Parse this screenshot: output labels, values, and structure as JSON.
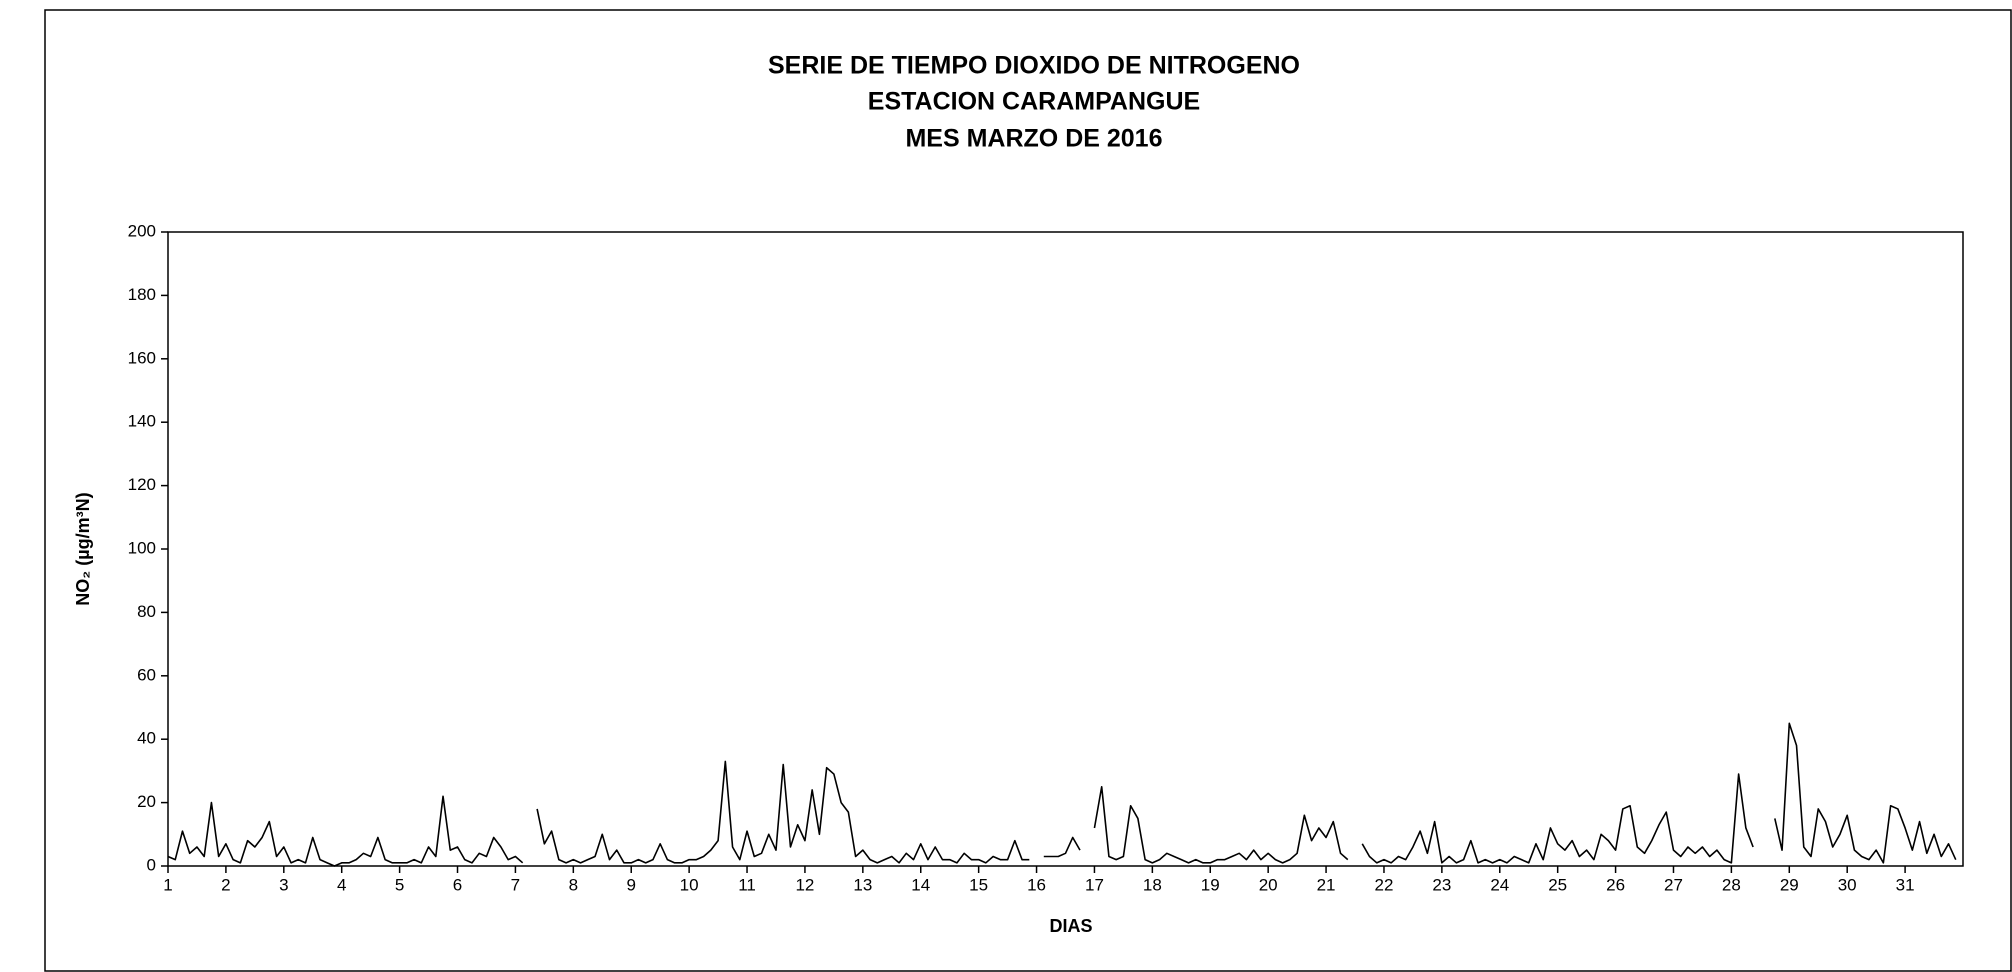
{
  "chart_data": {
    "type": "line",
    "title": [
      "SERIE DE TIEMPO DIOXIDO DE NITROGENO",
      "ESTACION CARAMPANGUE",
      "MES MARZO  DE 2016"
    ],
    "xlabel": "DIAS",
    "ylabel": "NO₂  (µg/m³N)",
    "color": "#000000",
    "xlim": [
      1,
      32
    ],
    "xticks": [
      1,
      2,
      3,
      4,
      5,
      6,
      7,
      8,
      9,
      10,
      11,
      12,
      13,
      14,
      15,
      16,
      17,
      18,
      19,
      20,
      21,
      22,
      23,
      24,
      25,
      26,
      27,
      28,
      29,
      30,
      31
    ],
    "ylim": [
      0,
      200
    ],
    "yticks": [
      0,
      20,
      40,
      60,
      80,
      100,
      120,
      140,
      160,
      180,
      200
    ],
    "x": [
      1,
      1.125,
      1.25,
      1.375,
      1.5,
      1.625,
      1.75,
      1.875,
      2,
      2.125,
      2.25,
      2.375,
      2.5,
      2.625,
      2.75,
      2.875,
      3,
      3.125,
      3.25,
      3.375,
      3.5,
      3.625,
      3.75,
      3.875,
      4,
      4.125,
      4.25,
      4.375,
      4.5,
      4.625,
      4.75,
      4.875,
      5,
      5.125,
      5.25,
      5.375,
      5.5,
      5.625,
      5.75,
      5.875,
      6,
      6.125,
      6.25,
      6.375,
      6.5,
      6.625,
      6.75,
      6.875,
      7,
      7.125,
      7.25,
      7.375,
      7.5,
      7.625,
      7.75,
      7.875,
      8,
      8.125,
      8.25,
      8.375,
      8.5,
      8.625,
      8.75,
      8.875,
      9,
      9.125,
      9.25,
      9.375,
      9.5,
      9.625,
      9.75,
      9.875,
      10,
      10.125,
      10.25,
      10.375,
      10.5,
      10.625,
      10.75,
      10.875,
      11,
      11.125,
      11.25,
      11.375,
      11.5,
      11.625,
      11.75,
      11.875,
      12,
      12.125,
      12.25,
      12.375,
      12.5,
      12.625,
      12.75,
      12.875,
      13,
      13.125,
      13.25,
      13.375,
      13.5,
      13.625,
      13.75,
      13.875,
      14,
      14.125,
      14.25,
      14.375,
      14.5,
      14.625,
      14.75,
      14.875,
      15,
      15.125,
      15.25,
      15.375,
      15.5,
      15.625,
      15.75,
      15.875,
      16,
      16.125,
      16.25,
      16.375,
      16.5,
      16.625,
      16.75,
      16.875,
      17,
      17.125,
      17.25,
      17.375,
      17.5,
      17.625,
      17.75,
      17.875,
      18,
      18.125,
      18.25,
      18.375,
      18.5,
      18.625,
      18.75,
      18.875,
      19,
      19.125,
      19.25,
      19.375,
      19.5,
      19.625,
      19.75,
      19.875,
      20,
      20.125,
      20.25,
      20.375,
      20.5,
      20.625,
      20.75,
      20.875,
      21,
      21.125,
      21.25,
      21.375,
      21.5,
      21.625,
      21.75,
      21.875,
      22,
      22.125,
      22.25,
      22.375,
      22.5,
      22.625,
      22.75,
      22.875,
      23,
      23.125,
      23.25,
      23.375,
      23.5,
      23.625,
      23.75,
      23.875,
      24,
      24.125,
      24.25,
      24.375,
      24.5,
      24.625,
      24.75,
      24.875,
      25,
      25.125,
      25.25,
      25.375,
      25.5,
      25.625,
      25.75,
      25.875,
      26,
      26.125,
      26.25,
      26.375,
      26.5,
      26.625,
      26.75,
      26.875,
      27,
      27.125,
      27.25,
      27.375,
      27.5,
      27.625,
      27.75,
      27.875,
      28,
      28.125,
      28.25,
      28.375,
      28.5,
      28.625,
      28.75,
      28.875,
      29,
      29.125,
      29.25,
      29.375,
      29.5,
      29.625,
      29.75,
      29.875,
      30,
      30.125,
      30.25,
      30.375,
      30.5,
      30.625,
      30.75,
      30.875,
      31,
      31.125,
      31.25,
      31.375,
      31.5,
      31.625,
      31.75,
      31.875
    ],
    "values": [
      3,
      2,
      11,
      4,
      6,
      3,
      20,
      3,
      7,
      2,
      1,
      8,
      6,
      9,
      14,
      3,
      6,
      1,
      2,
      1,
      9,
      2,
      1,
      0,
      1,
      1,
      2,
      4,
      3,
      9,
      2,
      1,
      1,
      1,
      2,
      1,
      6,
      3,
      22,
      5,
      6,
      2,
      1,
      4,
      3,
      9,
      6,
      2,
      3,
      1,
      null,
      18,
      7,
      11,
      2,
      1,
      2,
      1,
      2,
      3,
      10,
      2,
      5,
      1,
      1,
      2,
      1,
      2,
      7,
      2,
      1,
      1,
      2,
      2,
      3,
      5,
      8,
      33,
      6,
      2,
      11,
      3,
      4,
      10,
      5,
      32,
      6,
      13,
      8,
      24,
      10,
      31,
      29,
      20,
      17,
      3,
      5,
      2,
      1,
      2,
      3,
      1,
      4,
      2,
      7,
      2,
      6,
      2,
      2,
      1,
      4,
      2,
      2,
      1,
      3,
      2,
      2,
      8,
      2,
      2,
      null,
      3,
      3,
      3,
      4,
      9,
      5,
      null,
      12,
      25,
      3,
      2,
      3,
      19,
      15,
      2,
      1,
      2,
      4,
      3,
      2,
      1,
      2,
      1,
      1,
      2,
      2,
      3,
      4,
      2,
      5,
      2,
      4,
      2,
      1,
      2,
      4,
      16,
      8,
      12,
      9,
      14,
      4,
      2,
      null,
      7,
      3,
      1,
      2,
      1,
      3,
      2,
      6,
      11,
      4,
      14,
      1,
      3,
      1,
      2,
      8,
      1,
      2,
      1,
      2,
      1,
      3,
      2,
      1,
      7,
      2,
      12,
      7,
      5,
      8,
      3,
      5,
      2,
      10,
      8,
      5,
      18,
      19,
      6,
      4,
      8,
      13,
      17,
      5,
      3,
      6,
      4,
      6,
      3,
      5,
      2,
      1,
      29,
      12,
      6,
      null,
      null,
      15,
      5,
      45,
      38,
      6,
      3,
      18,
      14,
      6,
      10,
      16,
      5,
      3,
      2,
      5,
      1,
      19,
      18,
      12,
      5,
      14,
      4,
      10,
      3,
      7,
      2
    ]
  }
}
